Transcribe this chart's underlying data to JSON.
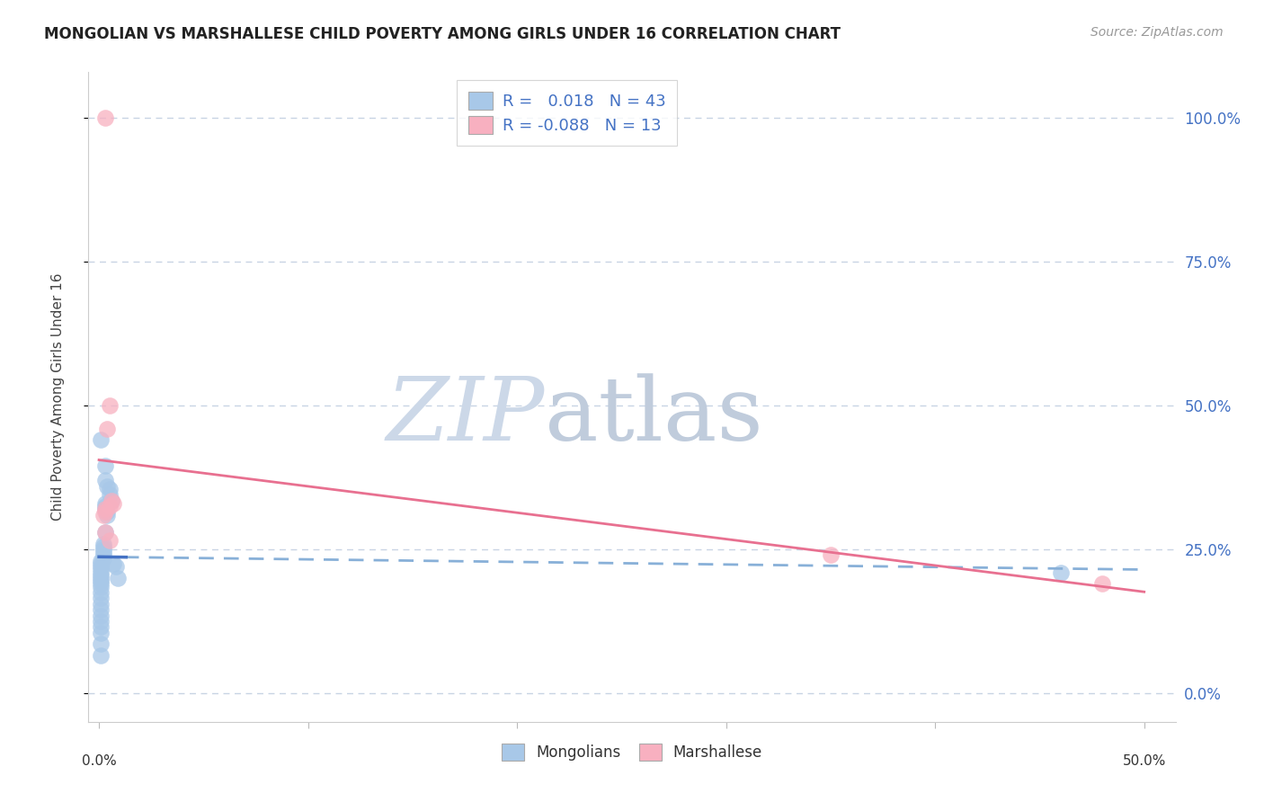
{
  "title": "MONGOLIAN VS MARSHALLESE CHILD POVERTY AMONG GIRLS UNDER 16 CORRELATION CHART",
  "source": "Source: ZipAtlas.com",
  "ylabel": "Child Poverty Among Girls Under 16",
  "ytick_labels_right": [
    "100.0%",
    "75.0%",
    "50.0%",
    "25.0%",
    "0.0%"
  ],
  "ytick_values": [
    1.0,
    0.75,
    0.5,
    0.25,
    0.0
  ],
  "xlim": [
    -0.005,
    0.515
  ],
  "ylim": [
    -0.05,
    1.08
  ],
  "legend_r_mongolian": " 0.018",
  "legend_n_mongolian": "43",
  "legend_r_marshallese": "-0.088",
  "legend_n_marshallese": "13",
  "mongolian_dot_color": "#a8c8e8",
  "marshallese_dot_color": "#f8b0c0",
  "mongolian_line_solid_color": "#4472c4",
  "mongolian_line_dash_color": "#88b0d8",
  "marshallese_line_color": "#e87090",
  "background_color": "#ffffff",
  "grid_color": "#c8d4e4",
  "mongolian_x": [
    0.003,
    0.003,
    0.004,
    0.005,
    0.005,
    0.006,
    0.007,
    0.008,
    0.009,
    0.003,
    0.003,
    0.003,
    0.004,
    0.004,
    0.003,
    0.002,
    0.002,
    0.002,
    0.002,
    0.002,
    0.002,
    0.001,
    0.001,
    0.001,
    0.001,
    0.001,
    0.001,
    0.001,
    0.001,
    0.001,
    0.001,
    0.001,
    0.001,
    0.001,
    0.001,
    0.001,
    0.001,
    0.001,
    0.001,
    0.001,
    0.46,
    0.001,
    0.001
  ],
  "mongolian_y": [
    0.395,
    0.37,
    0.36,
    0.355,
    0.345,
    0.335,
    0.225,
    0.22,
    0.2,
    0.33,
    0.325,
    0.32,
    0.315,
    0.31,
    0.28,
    0.26,
    0.255,
    0.25,
    0.245,
    0.24,
    0.235,
    0.23,
    0.225,
    0.22,
    0.215,
    0.21,
    0.205,
    0.2,
    0.195,
    0.19,
    0.185,
    0.175,
    0.165,
    0.155,
    0.145,
    0.135,
    0.125,
    0.115,
    0.105,
    0.44,
    0.21,
    0.085,
    0.065
  ],
  "marshallese_x": [
    0.002,
    0.003,
    0.003,
    0.004,
    0.005,
    0.005,
    0.005,
    0.006,
    0.007,
    0.003,
    0.003,
    0.35,
    0.48
  ],
  "marshallese_y": [
    0.31,
    0.32,
    0.315,
    0.46,
    0.5,
    0.325,
    0.265,
    0.335,
    0.33,
    0.28,
    1.0,
    0.24,
    0.19
  ]
}
